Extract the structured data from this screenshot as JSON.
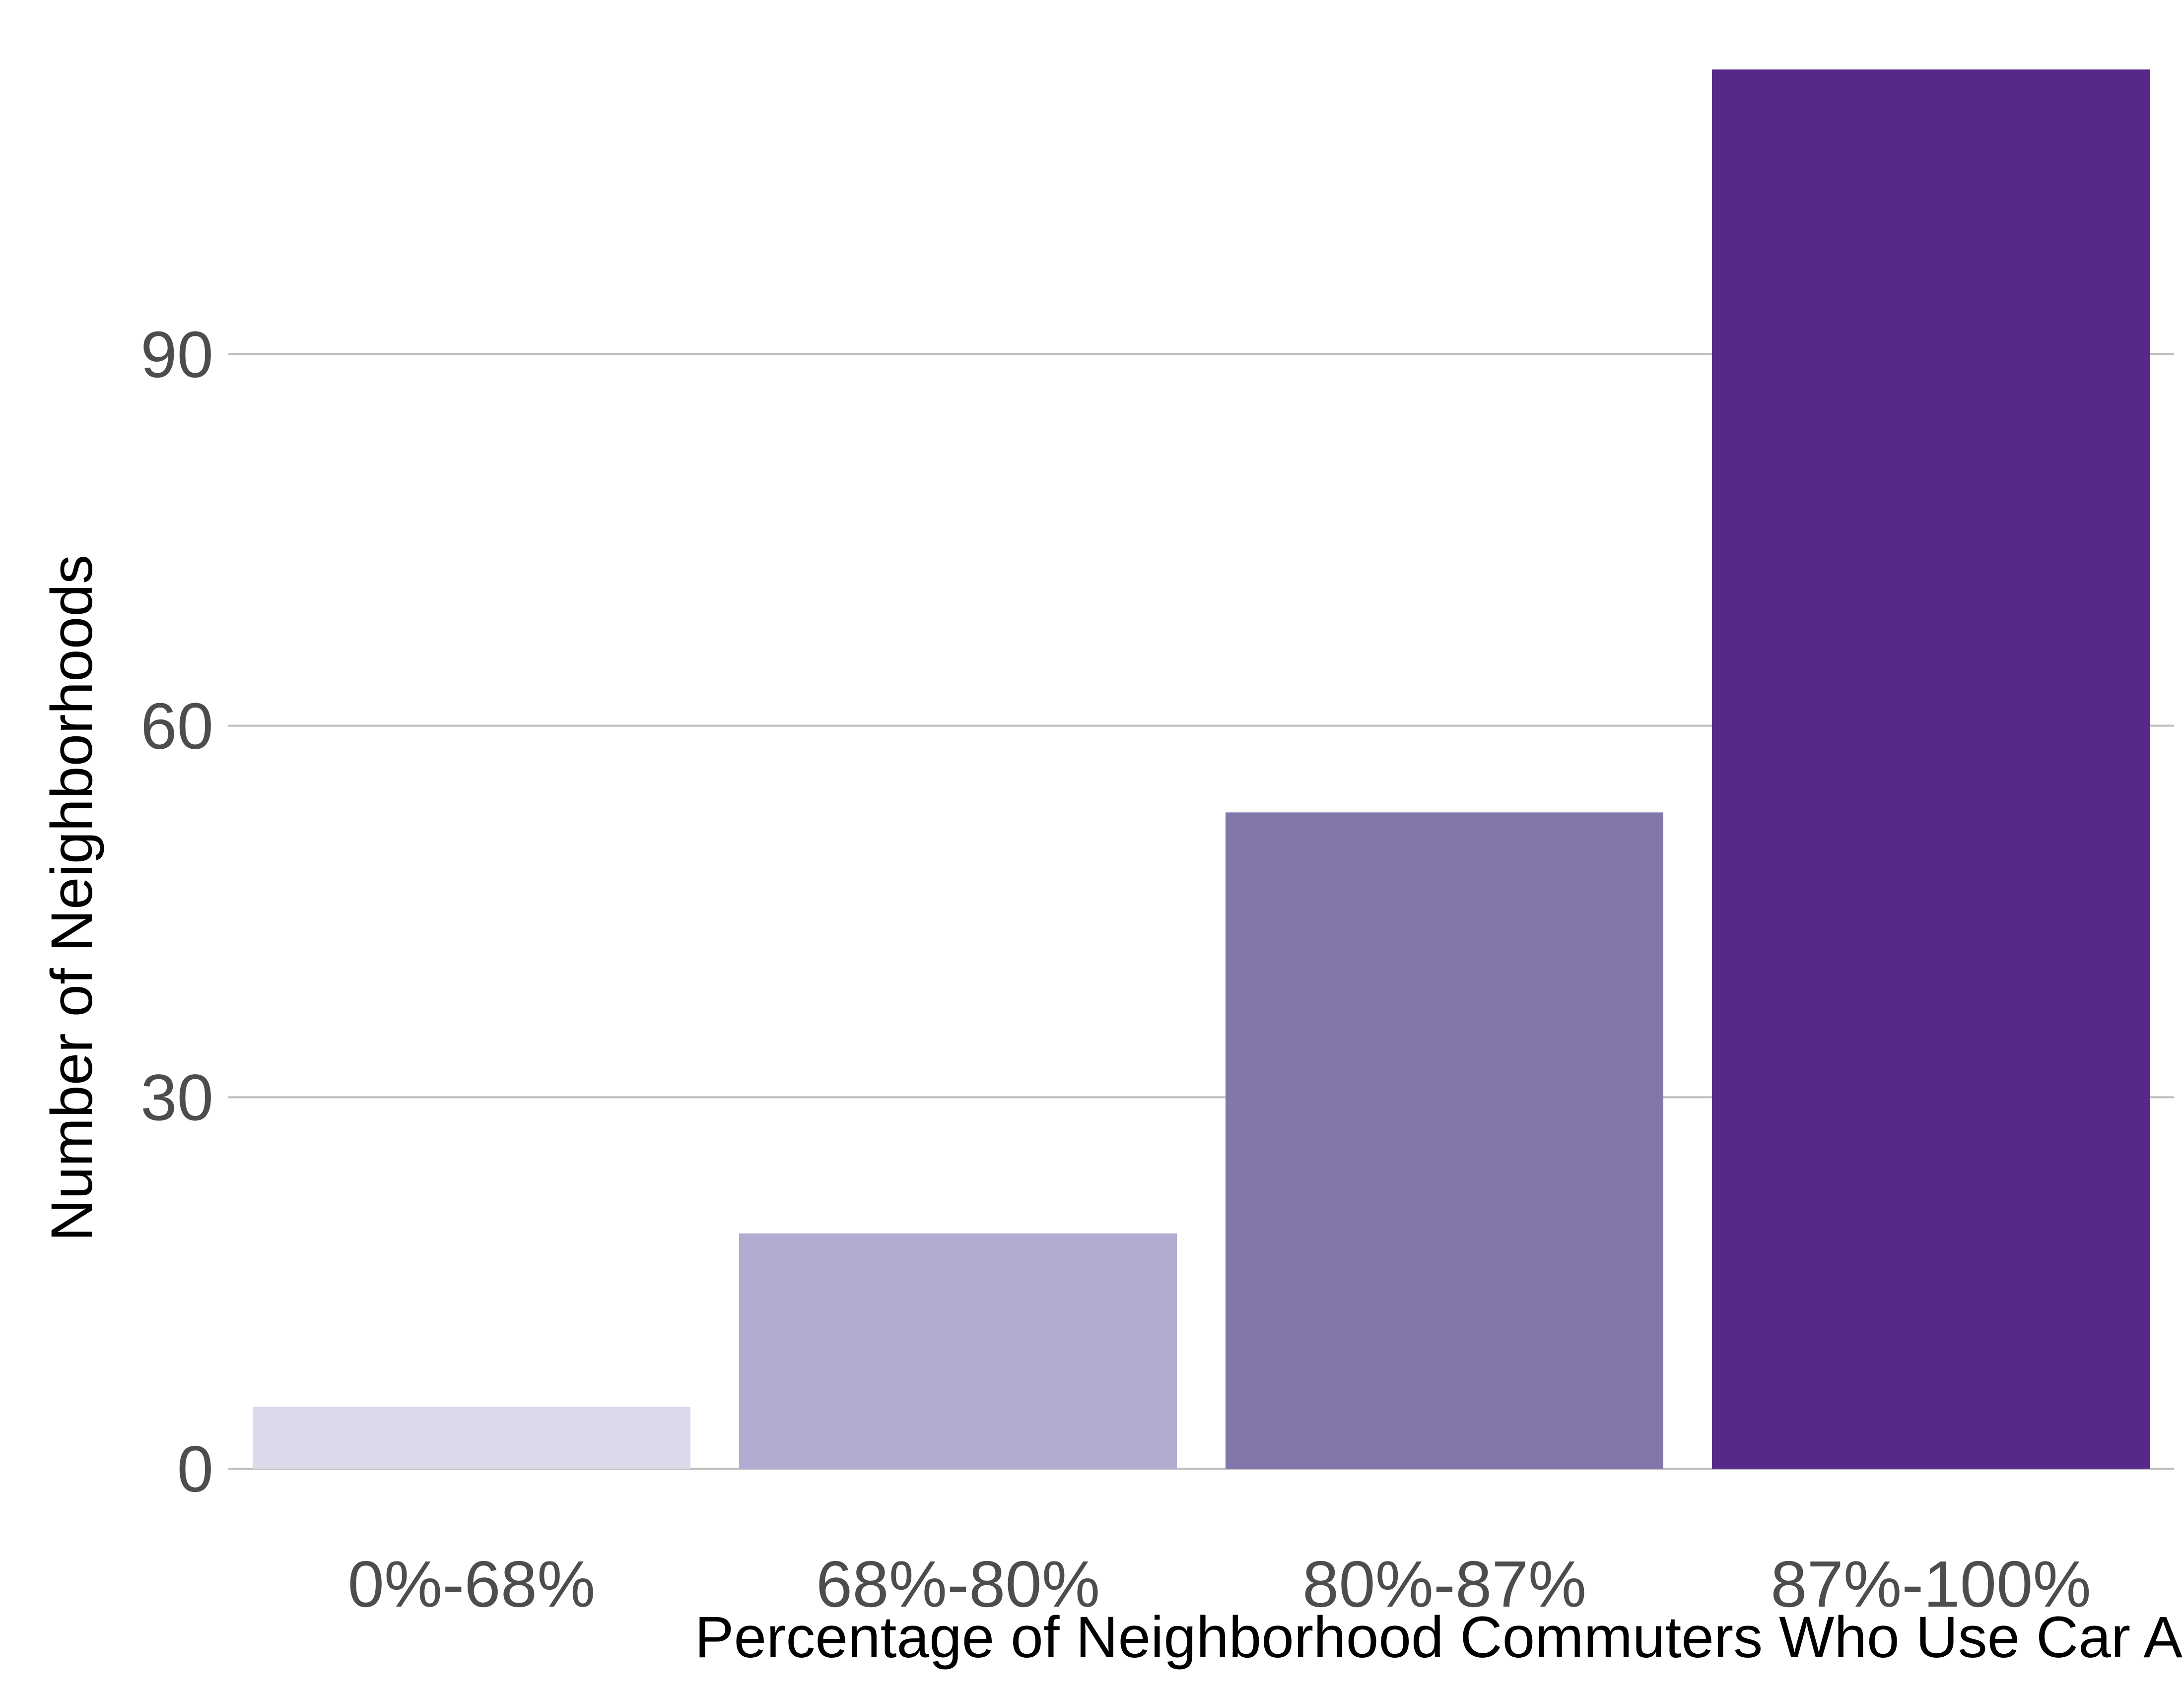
{
  "chart_data": {
    "type": "bar",
    "title": "",
    "xlabel": "Percentage of Neighborhood Commuters Who Use Car Alone",
    "ylabel": "Number of Neighborhoods",
    "categories": [
      "0%-68%",
      "68%-80%",
      "80%-87%",
      "87%-100%"
    ],
    "values": [
      5,
      19,
      53,
      113
    ],
    "colors": [
      "#dadaeb",
      "#b2acd3",
      "#8276aa",
      "#56288a"
    ],
    "ylim": [
      0,
      113
    ],
    "yticks": [
      0,
      30,
      60,
      90
    ],
    "ytick_labels": [
      "0",
      "30",
      "60",
      "90"
    ],
    "grid": {
      "horizontal": true,
      "vertical": false
    },
    "legend": "none"
  }
}
